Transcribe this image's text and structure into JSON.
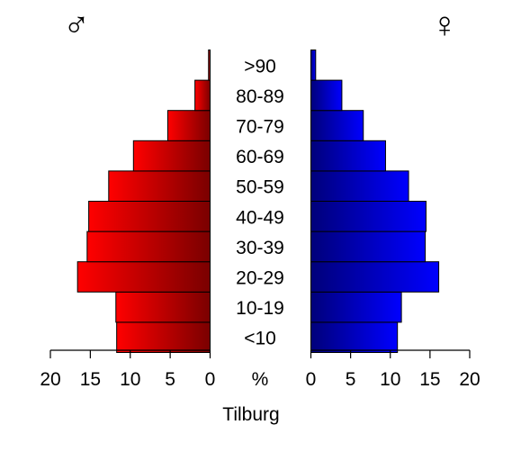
{
  "chart_data": {
    "type": "bar",
    "layout": "population-pyramid",
    "title": "",
    "xlabel": "Tilburg",
    "axis_unit_label": "%",
    "xlim": [
      0,
      20
    ],
    "x_ticks": [
      "20",
      "15",
      "10",
      "5",
      "0",
      "0",
      "5",
      "10",
      "15",
      "20"
    ],
    "categories": [
      "<10",
      "10-19",
      "20-29",
      "30-39",
      "40-49",
      "50-59",
      "60-69",
      "70-79",
      "80-89",
      ">90"
    ],
    "series": [
      {
        "symbol": "♂",
        "side": "left",
        "color": "#ff0000",
        "values": [
          11.7,
          11.8,
          16.6,
          15.4,
          15.2,
          12.7,
          9.6,
          5.3,
          1.9,
          0.2
        ]
      },
      {
        "symbol": "♀",
        "side": "right",
        "color": "#0000ff",
        "values": [
          10.9,
          11.4,
          16.1,
          14.4,
          14.5,
          12.3,
          9.4,
          6.6,
          3.9,
          0.6
        ]
      }
    ],
    "grid": false,
    "legend": "symbols above each half"
  }
}
